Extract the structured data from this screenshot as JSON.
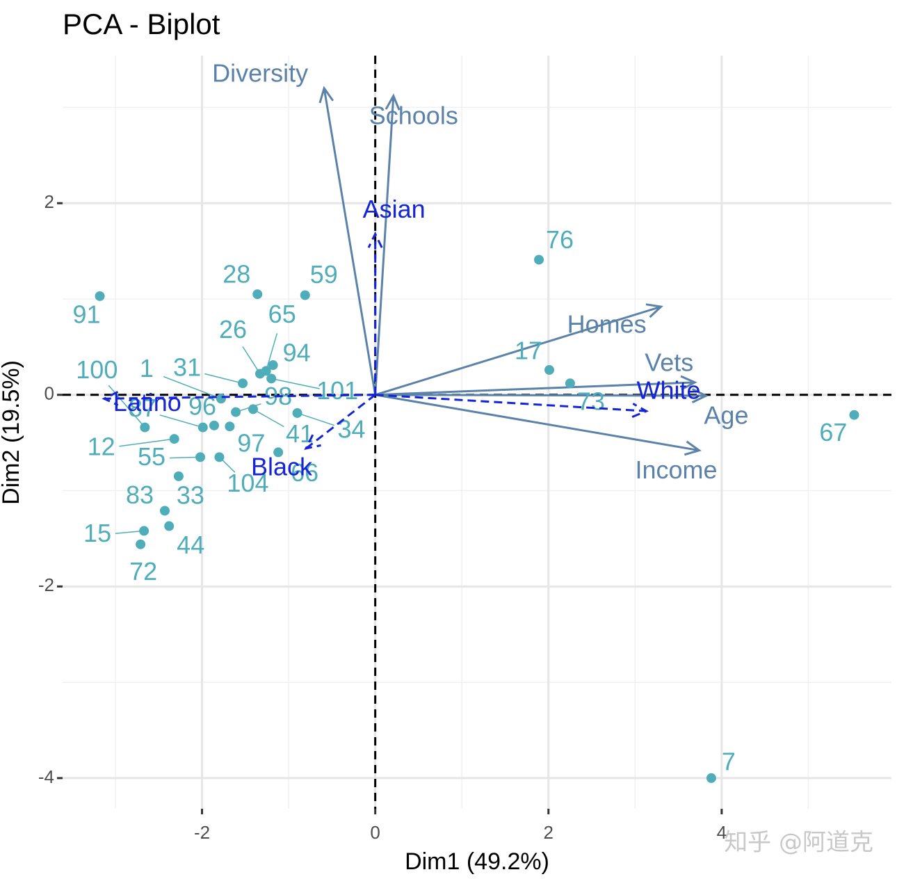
{
  "chart_data": {
    "type": "scatter",
    "title": "PCA - Biplot",
    "x_label": "Dim1 (49.2%)",
    "y_label": "Dim2 (19.5%)",
    "xlim": [
      -3.61,
      5.96
    ],
    "ylim": [
      -4.32,
      3.54
    ],
    "xticks": [
      -2,
      0,
      2,
      4
    ],
    "yticks": [
      -4,
      -2,
      0,
      2
    ],
    "xminorticks": [
      -3,
      -1,
      1,
      3,
      5
    ],
    "yminorticks": [
      -3,
      -1,
      1,
      3
    ],
    "grid": true,
    "reference_lines": {
      "x": 0,
      "y": 0
    },
    "points": {
      "color": "#4fadb9",
      "labels": [
        "91",
        "28",
        "59",
        "76",
        "17",
        "73",
        "67",
        "7",
        "26",
        "65",
        "94",
        "101",
        "31",
        "1",
        "100",
        "87",
        "96",
        "98",
        "41",
        "34",
        "97",
        "66",
        "12",
        "55",
        "104",
        "33",
        "83",
        "44",
        "15",
        "72"
      ],
      "x": [
        -3.18,
        -1.36,
        -0.81,
        1.89,
        2.01,
        2.25,
        5.53,
        3.88,
        -1.33,
        -1.26,
        -1.18,
        -1.2,
        -1.53,
        -1.78,
        -2.66,
        -1.99,
        -1.86,
        -1.61,
        -1.41,
        -0.9,
        -1.68,
        -1.12,
        -2.32,
        -2.02,
        -1.8,
        -2.27,
        -2.43,
        -2.38,
        -2.67,
        -2.71
      ],
      "y": [
        1.03,
        1.05,
        1.04,
        1.41,
        0.26,
        0.12,
        -0.21,
        -4.0,
        0.22,
        0.25,
        0.31,
        0.17,
        0.12,
        -0.04,
        -0.34,
        -0.34,
        -0.32,
        -0.18,
        -0.15,
        -0.19,
        -0.33,
        -0.6,
        -0.46,
        -0.65,
        -0.65,
        -0.85,
        -1.21,
        -1.37,
        -1.42,
        -1.56
      ]
    },
    "variables": {
      "color": "#5b82a8",
      "labels": [
        "Diversity",
        "Schools",
        "Homes",
        "Vets",
        "Age",
        "Income"
      ],
      "x": [
        -0.59,
        0.21,
        3.3,
        3.69,
        3.82,
        3.74
      ],
      "y": [
        3.2,
        3.12,
        0.92,
        0.13,
        -0.01,
        -0.58
      ]
    },
    "supplementary": {
      "color": "#1424d6",
      "labels": [
        "Asian",
        "Latino",
        "White",
        "Black"
      ],
      "x": [
        0.0,
        -3.13,
        3.13,
        -0.8
      ],
      "y": [
        1.68,
        -0.04,
        -0.17,
        -0.56
      ]
    },
    "watermark": "知乎 @阿道克"
  }
}
